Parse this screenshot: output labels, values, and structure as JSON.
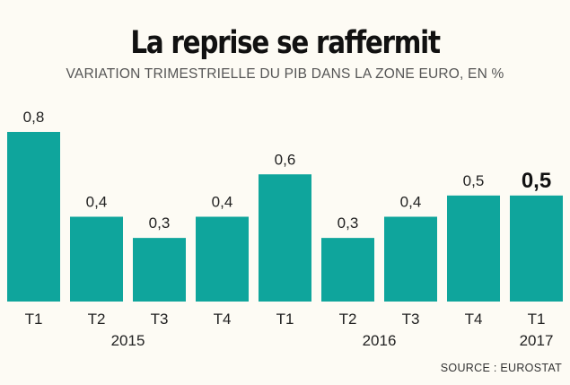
{
  "chart_data": {
    "type": "bar",
    "title": "La reprise se raffermit",
    "subtitle": "VARIATION TRIMESTRIELLE DU PIB DANS LA ZONE EURO, EN %",
    "categories": [
      "T1",
      "T2",
      "T3",
      "T4",
      "T1",
      "T2",
      "T3",
      "T4",
      "T1"
    ],
    "years": [
      {
        "label": "2015",
        "start": 0,
        "end": 3
      },
      {
        "label": "2016",
        "start": 4,
        "end": 7
      },
      {
        "label": "2017",
        "start": 8,
        "end": 8
      }
    ],
    "values": [
      0.8,
      0.4,
      0.3,
      0.4,
      0.6,
      0.3,
      0.4,
      0.5,
      0.5
    ],
    "value_labels": [
      "0,8",
      "0,4",
      "0,3",
      "0,4",
      "0,6",
      "0,3",
      "0,4",
      "0,5",
      "0,5"
    ],
    "highlight_index": 8,
    "ylim": [
      0,
      0.8
    ],
    "xlabel": "",
    "ylabel": "",
    "grid": false,
    "bar_color": "#0fa59c",
    "source": "SOURCE : EUROSTAT"
  }
}
